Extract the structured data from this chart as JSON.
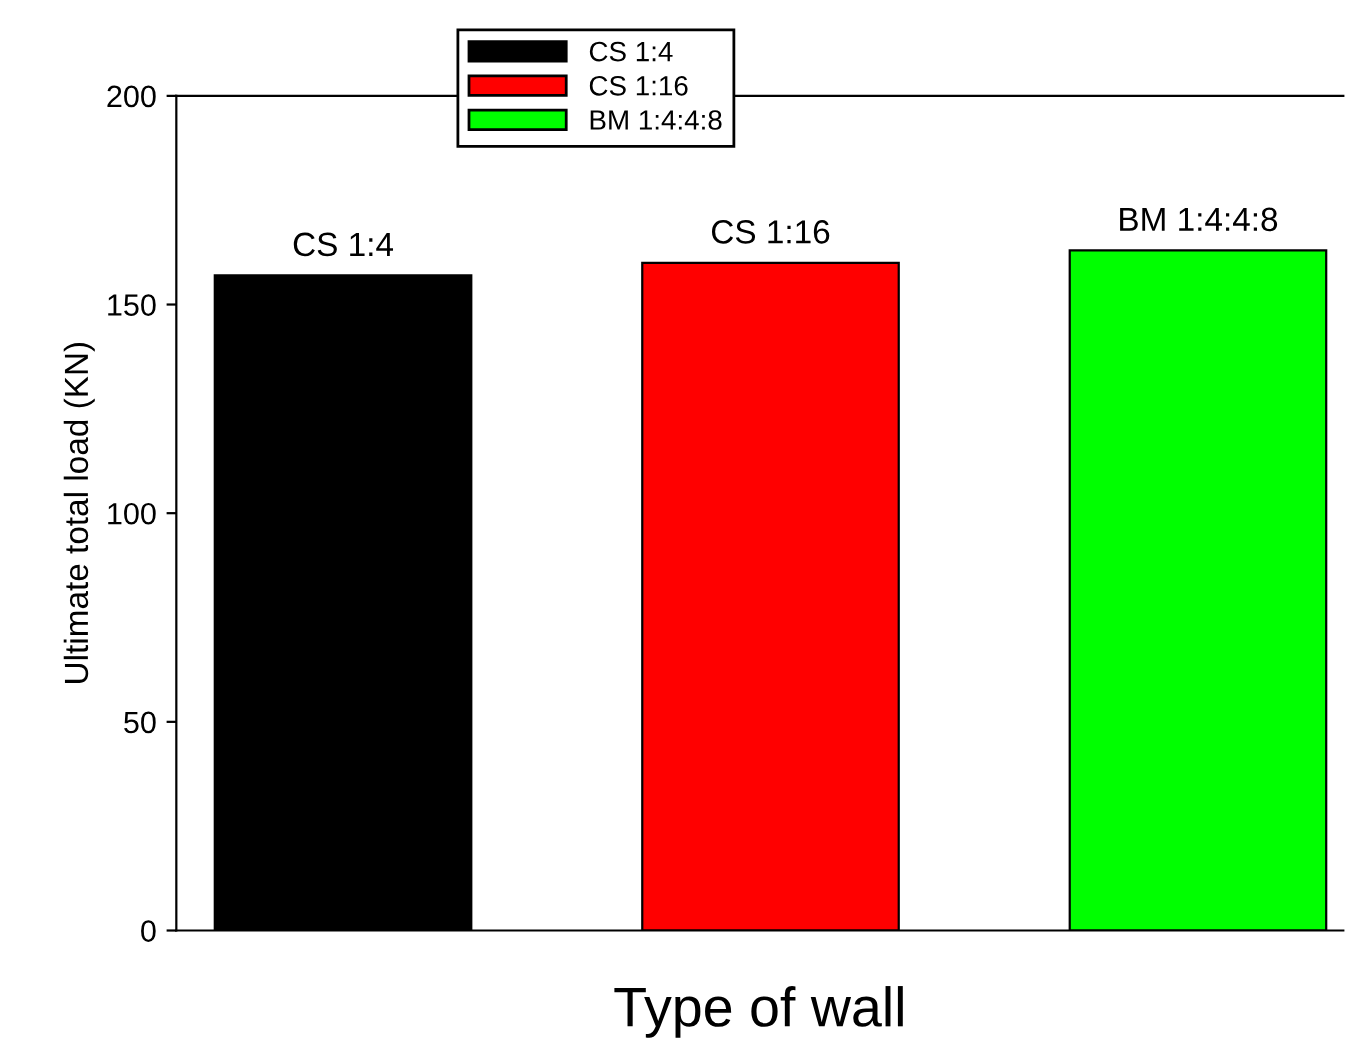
{
  "chart_data": {
    "type": "bar",
    "xlabel": "Type of wall",
    "ylabel": "Ultimate total load (KN)",
    "categories": [
      null,
      null,
      null
    ],
    "series": [
      {
        "name": "CS 1:4",
        "color": "#000000",
        "values": [
          157,
          null,
          null
        ]
      },
      {
        "name": "CS 1:16",
        "color": "#ff0000",
        "values": [
          null,
          160,
          null
        ]
      },
      {
        "name": "BM 1:4:4:8",
        "color": "#00ff00",
        "values": [
          null,
          null,
          163
        ]
      }
    ],
    "ylim": [
      0,
      200
    ],
    "yticks": [
      0,
      50,
      100,
      150,
      200
    ],
    "grid": false,
    "legend": "top"
  }
}
